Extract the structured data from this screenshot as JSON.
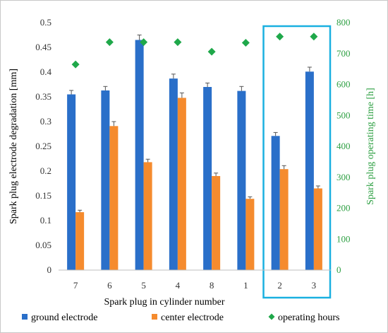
{
  "chart_data": {
    "type": "bar",
    "categories": [
      "7",
      "6",
      "5",
      "4",
      "8",
      "1",
      "2",
      "3"
    ],
    "xlabel": "Spark plug in cylinder number",
    "ylabel": "Spark plug electrode degradation [mm]",
    "y2label": "Spark plug operating time [h]",
    "ylim": [
      0,
      0.5
    ],
    "y2lim": [
      0,
      800
    ],
    "yticks": [
      "0",
      "0.05",
      "0.1",
      "0.15",
      "0.2",
      "0.25",
      "0.3",
      "0.35",
      "0.4",
      "0.45",
      "0.5"
    ],
    "y2ticks": [
      "0",
      "100",
      "200",
      "300",
      "400",
      "500",
      "600",
      "700",
      "800"
    ],
    "grid": false,
    "legend_position": "bottom",
    "highlight_categories": [
      "2",
      "3"
    ],
    "series": [
      {
        "name": "ground electrode",
        "type": "bar",
        "axis": "left",
        "color": "#2a6fc9",
        "values": [
          0.355,
          0.363,
          0.465,
          0.387,
          0.37,
          0.362,
          0.271,
          0.401
        ],
        "errors": [
          0.008,
          0.008,
          0.01,
          0.009,
          0.008,
          0.009,
          0.007,
          0.009
        ]
      },
      {
        "name": "center electrode",
        "type": "bar",
        "axis": "left",
        "color": "#f58b2e",
        "values": [
          0.117,
          0.291,
          0.218,
          0.348,
          0.19,
          0.144,
          0.204,
          0.165
        ],
        "errors": [
          0.004,
          0.009,
          0.006,
          0.01,
          0.006,
          0.004,
          0.007,
          0.005
        ]
      },
      {
        "name": "operating hours",
        "type": "scatter",
        "axis": "right",
        "marker": "diamond",
        "color": "#1fa84a",
        "values": [
          665,
          737,
          737,
          737,
          706,
          735,
          755,
          755
        ]
      }
    ],
    "highlight_color": "#1ab0e0"
  }
}
